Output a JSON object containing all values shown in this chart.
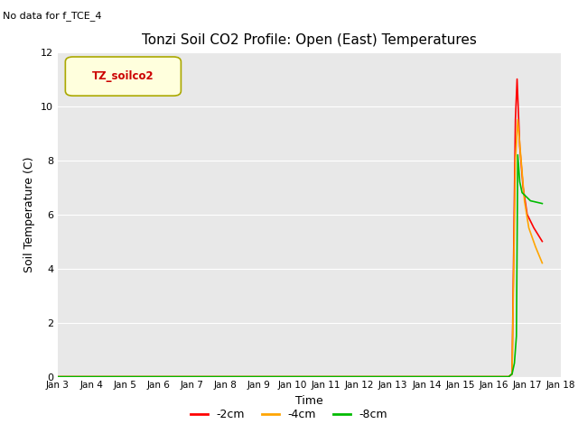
{
  "title": "Tonzi Soil CO2 Profile: Open (East) Temperatures",
  "no_data_text": "No data for f_TCE_4",
  "xlabel": "Time",
  "ylabel": "Soil Temperature (C)",
  "ylim": [
    0,
    12
  ],
  "yticks": [
    0,
    2,
    4,
    6,
    8,
    10,
    12
  ],
  "background_color": "#e8e8e8",
  "legend_box_label": "TZ_soilco2",
  "legend_box_color": "#ffffdd",
  "legend_box_edge_color": "#aaa800",
  "series": [
    {
      "label": "-2cm",
      "color": "#ff0000",
      "points": [
        [
          3,
          0
        ],
        [
          16.45,
          0
        ],
        [
          16.55,
          0.1
        ],
        [
          16.65,
          9.5
        ],
        [
          16.7,
          11.0
        ],
        [
          16.78,
          8.5
        ],
        [
          16.88,
          7.0
        ],
        [
          17.0,
          6.0
        ],
        [
          17.2,
          5.5
        ],
        [
          17.45,
          5.0
        ]
      ]
    },
    {
      "label": "-4cm",
      "color": "#ffa500",
      "points": [
        [
          3,
          0
        ],
        [
          16.45,
          0
        ],
        [
          16.55,
          0.1
        ],
        [
          16.65,
          8.0
        ],
        [
          16.72,
          9.5
        ],
        [
          16.82,
          8.0
        ],
        [
          16.92,
          6.5
        ],
        [
          17.05,
          5.5
        ],
        [
          17.25,
          4.8
        ],
        [
          17.45,
          4.2
        ]
      ]
    },
    {
      "label": "-8cm",
      "color": "#00bb00",
      "points": [
        [
          3,
          0
        ],
        [
          16.45,
          0
        ],
        [
          16.5,
          0.05
        ],
        [
          16.55,
          0.1
        ],
        [
          16.62,
          0.5
        ],
        [
          16.68,
          1.5
        ],
        [
          16.72,
          8.2
        ],
        [
          16.78,
          7.2
        ],
        [
          16.85,
          6.8
        ],
        [
          17.1,
          6.5
        ],
        [
          17.45,
          6.4
        ]
      ]
    }
  ],
  "xtick_labels": [
    "Jan 3",
    "Jan 4",
    "Jan 5",
    "Jan 6",
    "Jan 7",
    "Jan 8",
    "Jan 9",
    "Jan 10",
    "Jan 11",
    "Jan 12",
    "Jan 13",
    "Jan 14",
    "Jan 15",
    "Jan 16",
    "Jan 17",
    "Jan 18"
  ],
  "xtick_positions": [
    3,
    4,
    5,
    6,
    7,
    8,
    9,
    10,
    11,
    12,
    13,
    14,
    15,
    16,
    17,
    18
  ],
  "xlim": [
    3,
    18
  ]
}
